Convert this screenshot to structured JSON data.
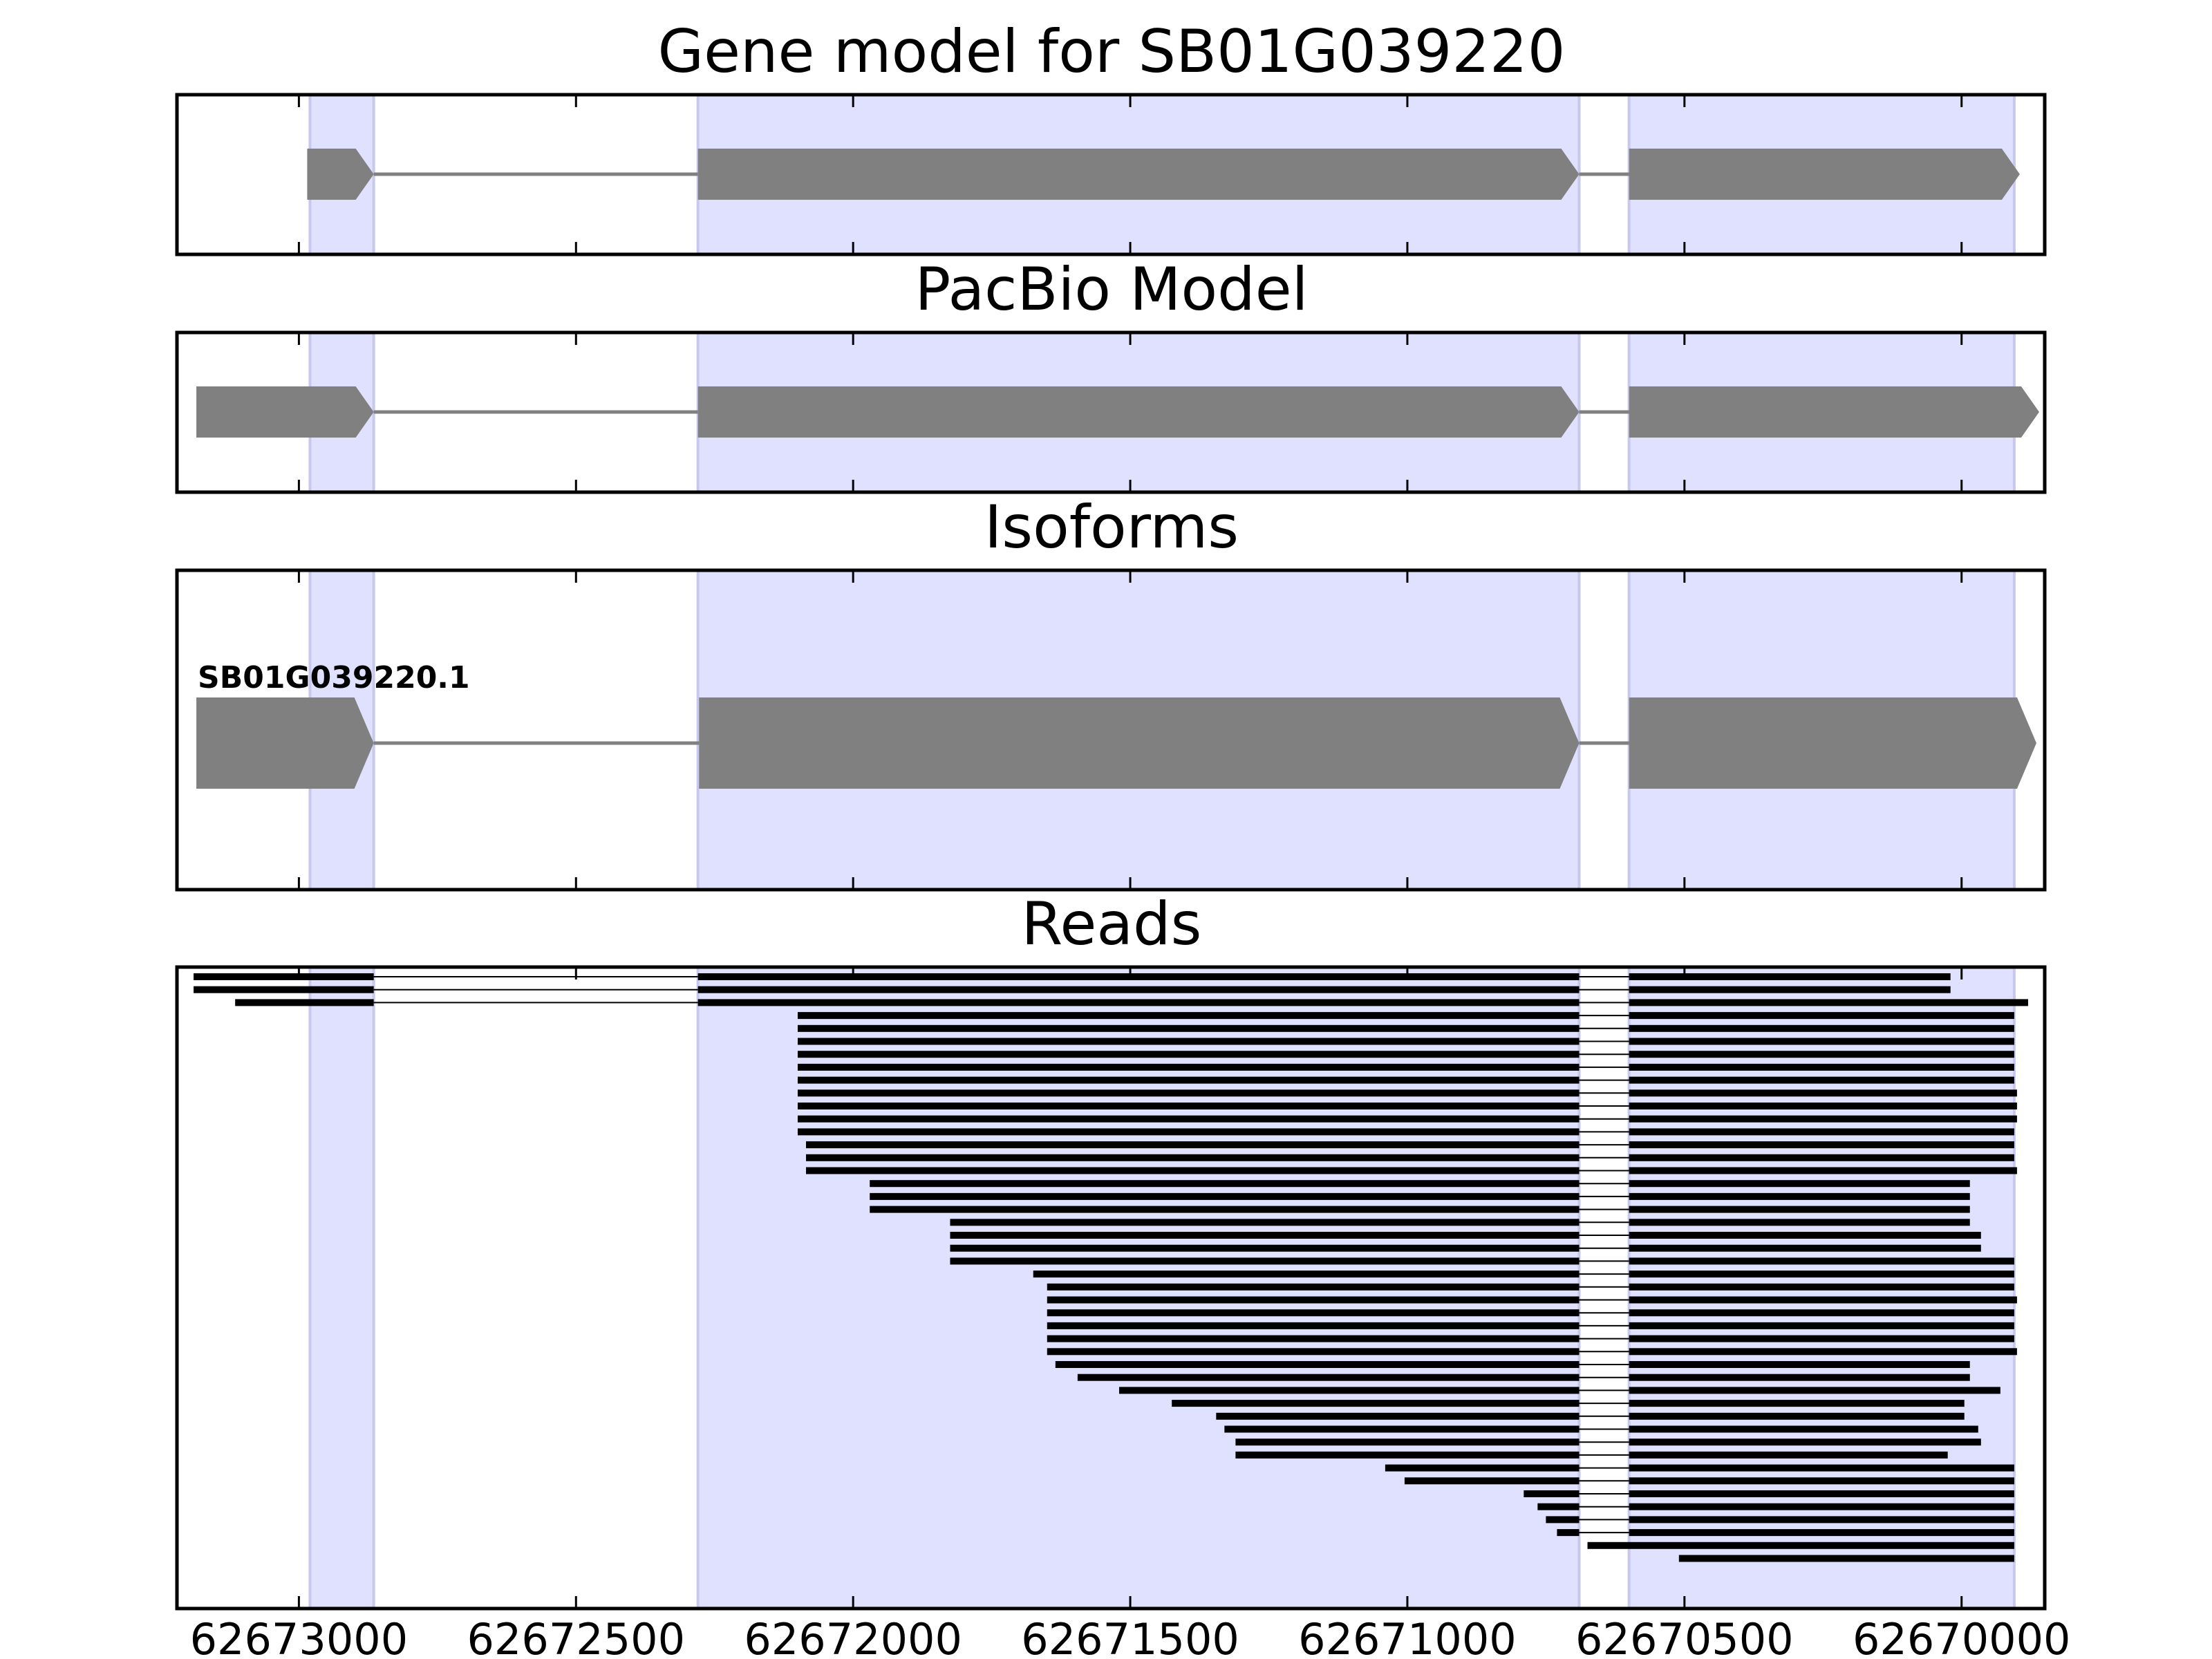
{
  "chart_data": {
    "type": "gene_track",
    "x_axis": {
      "reversed": true,
      "xlim": [
        62673220,
        62669850
      ],
      "ticks": [
        62673000,
        62672500,
        62672000,
        62671500,
        62671000,
        62670500,
        62670000
      ],
      "tick_labels": [
        "62673000",
        "62672500",
        "62672000",
        "62671500",
        "62671000",
        "62670500",
        "62670000"
      ]
    },
    "colors": {
      "exon": "#808080",
      "intron": "#808080",
      "shade": "#e0e0ff",
      "read": "#000000",
      "frame": "#000000"
    },
    "shaded_exons": [
      [
        62672980,
        62672865
      ],
      [
        62672280,
        62670690
      ],
      [
        62670600,
        62669905
      ]
    ],
    "panels": [
      {
        "title": "Gene model for SB01G039220",
        "strand": "-",
        "exons": [
          [
            62672985,
            62672865
          ],
          [
            62672280,
            62670690
          ],
          [
            62670600,
            62669895
          ]
        ]
      },
      {
        "title": "PacBio Model",
        "strand": "-",
        "exons": [
          [
            62673185,
            62672865
          ],
          [
            62672280,
            62670690
          ],
          [
            62670600,
            62669860
          ]
        ]
      },
      {
        "title": "Isoforms",
        "strand": "-",
        "isoforms": [
          {
            "name": "SB01G039220.1",
            "exons": [
              [
                62673185,
                62672865
              ],
              [
                62672278,
                62670690
              ],
              [
                62670600,
                62669865
              ]
            ]
          }
        ]
      },
      {
        "title": "Reads",
        "reads": [
          [
            62673190,
            62670020
          ],
          [
            62673190,
            62670020
          ],
          [
            62673115,
            62669880
          ],
          [
            62672100,
            62669905
          ],
          [
            62672100,
            62669905
          ],
          [
            62672100,
            62669905
          ],
          [
            62672100,
            62669905
          ],
          [
            62672100,
            62669905
          ],
          [
            62672100,
            62669905
          ],
          [
            62672100,
            62669900
          ],
          [
            62672100,
            62669900
          ],
          [
            62672100,
            62669900
          ],
          [
            62672100,
            62669905
          ],
          [
            62672085,
            62669905
          ],
          [
            62672085,
            62669905
          ],
          [
            62672085,
            62669900
          ],
          [
            62671970,
            62669985
          ],
          [
            62671970,
            62669985
          ],
          [
            62671970,
            62669985
          ],
          [
            62671825,
            62669985
          ],
          [
            62671825,
            62669965
          ],
          [
            62671825,
            62669965
          ],
          [
            62671825,
            62669905
          ],
          [
            62671675,
            62669905
          ],
          [
            62671650,
            62669905
          ],
          [
            62671650,
            62669900
          ],
          [
            62671650,
            62669905
          ],
          [
            62671650,
            62669905
          ],
          [
            62671650,
            62669905
          ],
          [
            62671650,
            62669900
          ],
          [
            62671635,
            62669985
          ],
          [
            62671595,
            62669985
          ],
          [
            62671520,
            62669930
          ],
          [
            62671425,
            62669995
          ],
          [
            62671345,
            62669995
          ],
          [
            62671330,
            62669970
          ],
          [
            62671310,
            62669965
          ],
          [
            62671310,
            62670025
          ],
          [
            62671040,
            62669905
          ],
          [
            62671005,
            62669905
          ],
          [
            62670790,
            62669905
          ],
          [
            62670765,
            62669905
          ],
          [
            62670750,
            62669905
          ],
          [
            62670730,
            62669905
          ],
          [
            62670675,
            62669905
          ],
          [
            62670510,
            62669905
          ]
        ]
      }
    ]
  }
}
